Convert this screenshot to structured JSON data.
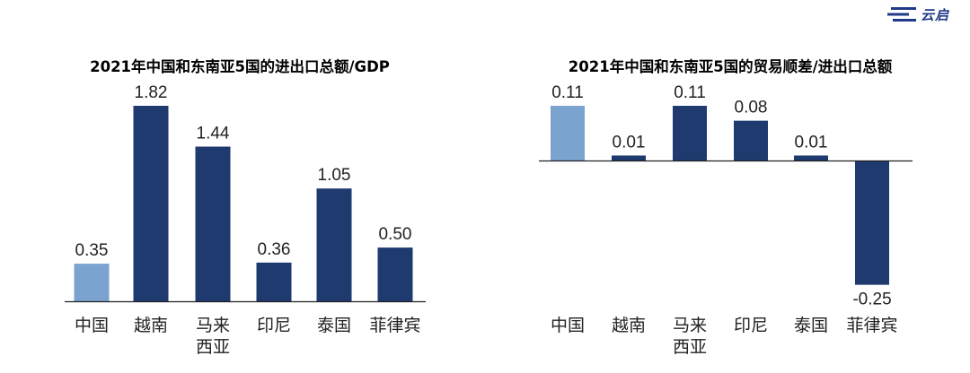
{
  "logo": {
    "text": "云启"
  },
  "chart_data": [
    {
      "type": "bar",
      "title": "2021年中国和东南亚5国的进出口总额/GDP",
      "categories": [
        [
          "中国"
        ],
        [
          "越南"
        ],
        [
          "马来",
          "西亚"
        ],
        [
          "印尼"
        ],
        [
          "泰国"
        ],
        [
          "菲律宾"
        ]
      ],
      "values": [
        0.35,
        1.82,
        1.44,
        0.36,
        1.05,
        0.5
      ],
      "value_labels": [
        "0.35",
        "1.82",
        "1.44",
        "0.36",
        "1.05",
        "0.50"
      ],
      "bar_colors": [
        "#7ba3d0",
        "#1e3a6e",
        "#1e3a6e",
        "#1e3a6e",
        "#1e3a6e",
        "#1e3a6e"
      ],
      "ylim": [
        0,
        1.82
      ],
      "xlabel": "",
      "ylabel": ""
    },
    {
      "type": "bar",
      "title": "2021年中国和东南亚5国的贸易顺差/进出口总额",
      "categories": [
        [
          "中国"
        ],
        [
          "越南"
        ],
        [
          "马来",
          "西亚"
        ],
        [
          "印尼"
        ],
        [
          "泰国"
        ],
        [
          "菲律宾"
        ]
      ],
      "values": [
        0.11,
        0.01,
        0.11,
        0.08,
        0.01,
        -0.25
      ],
      "value_labels": [
        "0.11",
        "0.01",
        "0.11",
        "0.08",
        "0.01",
        "-0.25"
      ],
      "bar_colors": [
        "#7ba3d0",
        "#1e3a6e",
        "#1e3a6e",
        "#1e3a6e",
        "#1e3a6e",
        "#1e3a6e"
      ],
      "ylim": [
        -0.25,
        0.11
      ],
      "xlabel": "",
      "ylabel": ""
    }
  ]
}
